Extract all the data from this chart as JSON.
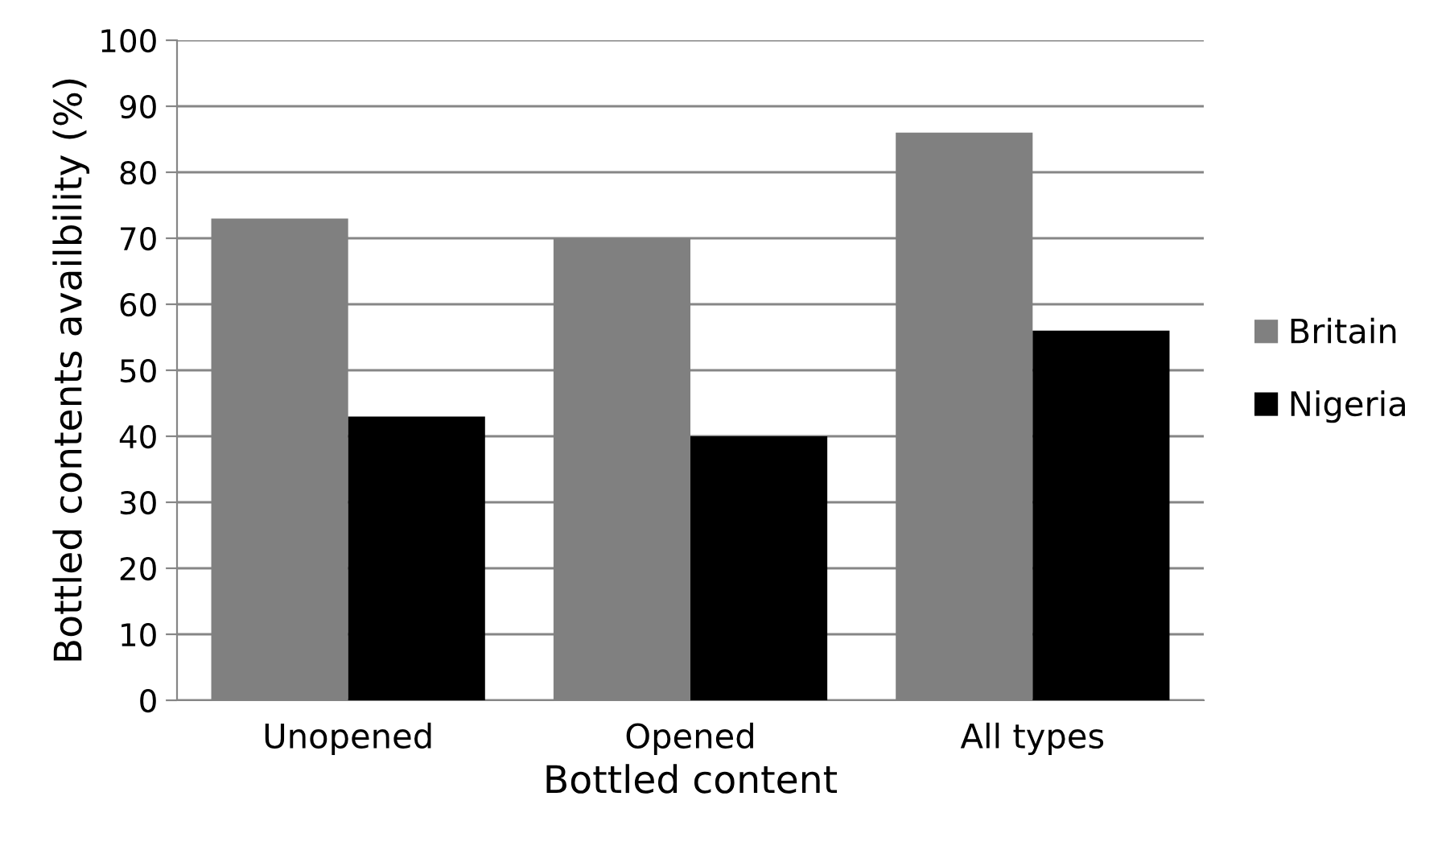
{
  "chart_data": {
    "type": "bar",
    "xlabel": "Bottled content",
    "ylabel": "Bottled contents availbility (%)",
    "categories": [
      "Unopened",
      "Opened",
      "All types"
    ],
    "series": [
      {
        "name": "Britain",
        "color": "#808080",
        "values": [
          73,
          70,
          86
        ]
      },
      {
        "name": "Nigeria",
        "color": "#000000",
        "values": [
          43,
          40,
          56
        ]
      }
    ],
    "ylim": [
      0,
      100
    ],
    "yticks": [
      0,
      10,
      20,
      30,
      40,
      50,
      60,
      70,
      80,
      90,
      100
    ],
    "grid": "y",
    "legend": "right"
  }
}
